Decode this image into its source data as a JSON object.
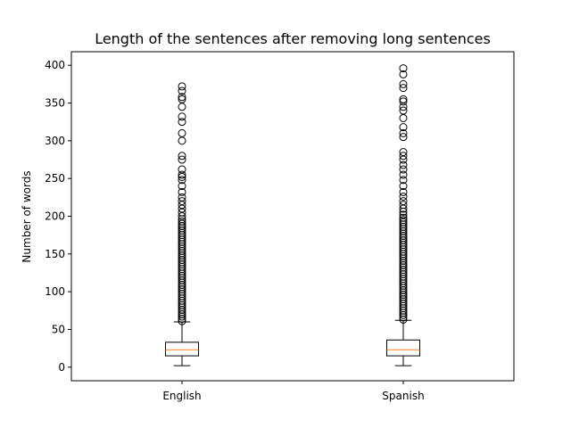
{
  "chart_data": {
    "type": "box",
    "title": "Length of the sentences after removing long sentences",
    "xlabel": "",
    "ylabel": "Number of words",
    "ylim": [
      -18,
      418
    ],
    "yticks": [
      0,
      50,
      100,
      150,
      200,
      250,
      300,
      350,
      400
    ],
    "grid": false,
    "series": [
      {
        "category": "English",
        "whisker_low": 2,
        "q1": 15,
        "median": 23,
        "q3": 33,
        "whisker_high": 60,
        "outliers": [
          61,
          64,
          67,
          70,
          73,
          76,
          79,
          82,
          85,
          88,
          91,
          94,
          97,
          100,
          103,
          106,
          109,
          112,
          115,
          118,
          121,
          124,
          127,
          130,
          133,
          136,
          139,
          142,
          145,
          148,
          151,
          154,
          157,
          160,
          163,
          166,
          169,
          172,
          175,
          178,
          181,
          184,
          187,
          190,
          193,
          196,
          200,
          205,
          210,
          215,
          220,
          225,
          232,
          240,
          248,
          252,
          255,
          262,
          275,
          280,
          300,
          310,
          325,
          332,
          345,
          355,
          358,
          366,
          372
        ]
      },
      {
        "category": "Spanish",
        "whisker_low": 2,
        "q1": 15,
        "median": 23,
        "q3": 36,
        "whisker_high": 62,
        "outliers": [
          63,
          66,
          69,
          72,
          75,
          78,
          81,
          84,
          87,
          90,
          93,
          96,
          99,
          102,
          105,
          108,
          111,
          114,
          117,
          120,
          123,
          126,
          129,
          132,
          135,
          138,
          141,
          144,
          147,
          150,
          153,
          156,
          159,
          162,
          165,
          168,
          171,
          174,
          177,
          180,
          183,
          186,
          189,
          192,
          195,
          198,
          202,
          206,
          210,
          215,
          220,
          226,
          232,
          240,
          248,
          255,
          262,
          268,
          275,
          280,
          285,
          305,
          310,
          318,
          330,
          340,
          345,
          352,
          355,
          370,
          375,
          388,
          396
        ]
      }
    ]
  }
}
